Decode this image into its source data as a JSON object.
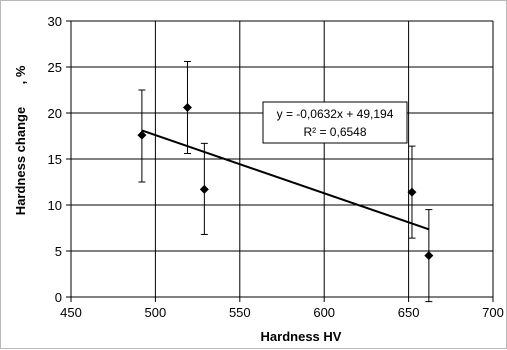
{
  "chart_data": {
    "type": "scatter",
    "title": "",
    "xlabel": "Hardness  HV",
    "ylabel_main": "Hardness change",
    "ylabel_unit": ", %",
    "xlim": [
      450,
      700
    ],
    "ylim": [
      0,
      30
    ],
    "xticks": [
      450,
      500,
      550,
      600,
      650,
      700
    ],
    "yticks": [
      0,
      5,
      10,
      15,
      20,
      25,
      30
    ],
    "x_tick_labels": [
      "450",
      "500",
      "550",
      "600",
      "650",
      "700"
    ],
    "y_tick_labels": [
      "0",
      "5",
      "10",
      "15",
      "20",
      "25",
      "30"
    ],
    "grid": true,
    "legend": "none",
    "points": [
      {
        "x": 492,
        "y": 17.6,
        "err_low": 12.5,
        "err_high": 22.5
      },
      {
        "x": 519,
        "y": 20.6,
        "err_low": 15.6,
        "err_high": 25.6
      },
      {
        "x": 529,
        "y": 11.7,
        "err_low": 6.8,
        "err_high": 16.7
      },
      {
        "x": 652,
        "y": 11.4,
        "err_low": 6.4,
        "err_high": 16.4
      },
      {
        "x": 662,
        "y": 4.5,
        "err_low": -0.5,
        "err_high": 9.5
      }
    ],
    "trendline": {
      "slope": -0.0632,
      "intercept": 49.194,
      "x_range": [
        492,
        662
      ],
      "equation_text": "y = -0,0632x + 49,194",
      "r2_text": "R² = 0,6548"
    },
    "colors": {
      "marker": "#000000",
      "grid": "#000000",
      "line": "#000000"
    }
  }
}
